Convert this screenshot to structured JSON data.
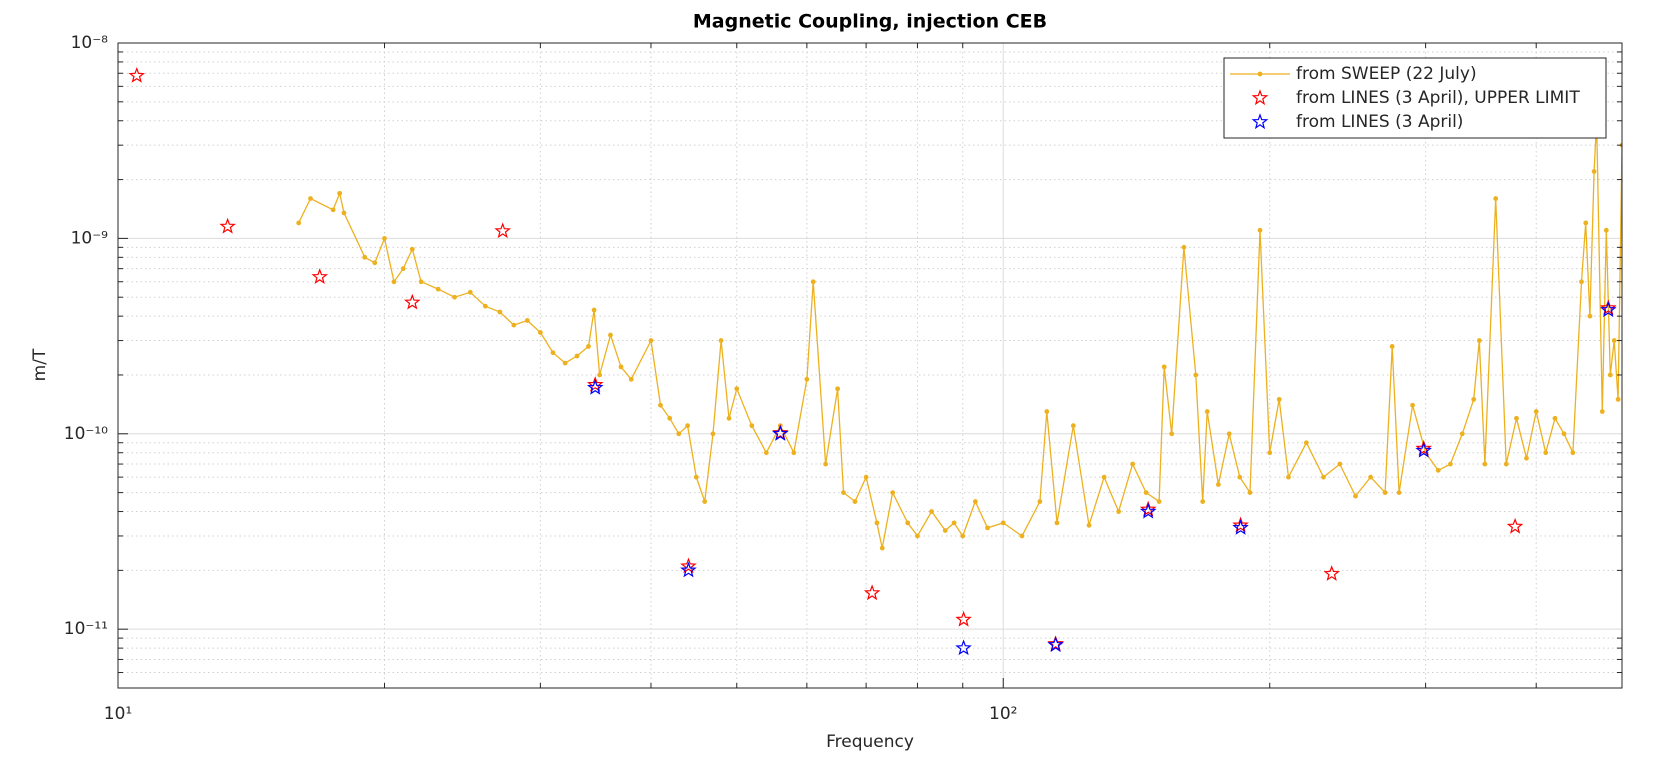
{
  "chart_data": {
    "type": "line",
    "title": "Magnetic Coupling, injection CEB",
    "xlabel": "Frequency",
    "ylabel": "m/T",
    "xscale": "log",
    "yscale": "log",
    "xlim": [
      10,
      500
    ],
    "ylim": [
      5e-12,
      1e-08
    ],
    "xticks": [
      {
        "value": 10,
        "label": "10¹"
      },
      {
        "value": 100,
        "label": "10²"
      }
    ],
    "yticks": [
      {
        "value": 1e-11,
        "label": "10⁻¹¹"
      },
      {
        "value": 1e-10,
        "label": "10⁻¹⁰"
      },
      {
        "value": 1e-09,
        "label": "10⁻⁹"
      },
      {
        "value": 1e-08,
        "label": "10⁻⁸"
      }
    ],
    "grid": true,
    "minor_grid": true,
    "legend": "northeast",
    "series": [
      {
        "name": "from SWEEP (22 July)",
        "color": "#edb120",
        "marker": "dot",
        "line": true,
        "x": [
          16,
          16.5,
          17.5,
          17.8,
          18,
          19,
          19.5,
          20,
          20.5,
          21,
          21.5,
          22,
          23,
          24,
          25,
          26,
          27,
          28,
          29,
          30,
          31,
          32,
          33,
          34,
          34.5,
          35,
          36,
          37,
          38,
          40,
          41,
          42,
          43,
          44,
          45,
          46,
          47,
          48,
          49,
          50,
          52,
          54,
          56,
          58,
          60,
          61,
          63,
          65,
          66,
          68,
          70,
          72,
          73,
          75,
          78,
          80,
          83,
          86,
          88,
          90,
          93,
          96,
          100,
          105,
          110,
          112,
          115,
          120,
          125,
          130,
          135,
          140,
          145,
          150,
          152,
          155,
          160,
          165,
          168,
          170,
          175,
          180,
          185,
          190,
          195,
          200,
          205,
          210,
          220,
          230,
          240,
          250,
          260,
          270,
          275,
          280,
          290,
          300,
          310,
          320,
          330,
          340,
          345,
          350,
          360,
          370,
          380,
          390,
          400,
          410,
          420,
          430,
          440,
          450,
          455,
          460,
          465,
          468,
          475,
          480,
          485,
          490,
          495,
          500
        ],
        "values": [
          1.2e-09,
          1.6e-09,
          1.4e-09,
          1.7e-09,
          1.35e-09,
          8e-10,
          7.5e-10,
          1e-09,
          6e-10,
          7e-10,
          8.8e-10,
          6e-10,
          5.5e-10,
          5e-10,
          5.3e-10,
          4.5e-10,
          4.2e-10,
          3.6e-10,
          3.8e-10,
          3.3e-10,
          2.6e-10,
          2.3e-10,
          2.5e-10,
          2.8e-10,
          4.3e-10,
          2e-10,
          3.2e-10,
          2.2e-10,
          1.9e-10,
          3e-10,
          1.4e-10,
          1.2e-10,
          1e-10,
          1.1e-10,
          6e-11,
          4.5e-11,
          1e-10,
          3e-10,
          1.2e-10,
          1.7e-10,
          1.1e-10,
          8e-11,
          1.1e-10,
          8e-11,
          1.9e-10,
          6e-10,
          7e-11,
          1.7e-10,
          5e-11,
          4.5e-11,
          6e-11,
          3.5e-11,
          2.6e-11,
          5e-11,
          3.5e-11,
          3e-11,
          4e-11,
          3.2e-11,
          3.5e-11,
          3e-11,
          4.5e-11,
          3.3e-11,
          3.5e-11,
          3e-11,
          4.5e-11,
          1.3e-10,
          3.5e-11,
          1.1e-10,
          3.4e-11,
          6e-11,
          4e-11,
          7e-11,
          5e-11,
          4.5e-11,
          2.2e-10,
          1e-10,
          9e-10,
          2e-10,
          4.5e-11,
          1.3e-10,
          5.5e-11,
          1e-10,
          6e-11,
          5e-11,
          1.1e-09,
          8e-11,
          1.5e-10,
          6e-11,
          9e-11,
          6e-11,
          7e-11,
          4.8e-11,
          6e-11,
          5e-11,
          2.8e-10,
          5e-11,
          1.4e-10,
          8e-11,
          6.5e-11,
          7e-11,
          1e-10,
          1.5e-10,
          3e-10,
          7e-11,
          1.6e-09,
          7e-11,
          1.2e-10,
          7.5e-11,
          1.3e-10,
          8e-11,
          1.2e-10,
          1e-10,
          8e-11,
          6e-10,
          1.2e-09,
          4e-10,
          2.2e-09,
          4e-09,
          1.3e-10,
          1.1e-09,
          2e-10,
          3e-10,
          1.5e-10,
          3e-09
        ]
      },
      {
        "name": "from LINES (3 April), UPPER LIMIT",
        "color": "#ff0000",
        "marker": "star",
        "line": false,
        "x": [
          10.5,
          13.3,
          16.9,
          21.5,
          27.2,
          34.6,
          44.1,
          56,
          71.1,
          90.2,
          114.6,
          145.8,
          185.4,
          235,
          298.5,
          378.6,
          482.5
        ],
        "values": [
          6.8e-09,
          1.15e-09,
          6.35e-10,
          4.7e-10,
          1.09e-09,
          1.78e-10,
          2.1e-11,
          1.01e-10,
          1.53e-11,
          1.12e-11,
          8.4e-12,
          4.1e-11,
          3.4e-11,
          1.92e-11,
          8.4e-11,
          3.35e-11,
          4.4e-10
        ]
      },
      {
        "name": "from LINES (3 April)",
        "color": "#0000ff",
        "marker": "star",
        "line": false,
        "x": [
          34.6,
          44.1,
          56,
          90.2,
          114.6,
          145.8,
          185.4,
          298.5,
          482.5
        ],
        "values": [
          1.72e-10,
          2e-11,
          1e-10,
          8e-12,
          8.3e-12,
          4e-11,
          3.3e-11,
          8.2e-11,
          4.3e-10
        ]
      }
    ]
  }
}
